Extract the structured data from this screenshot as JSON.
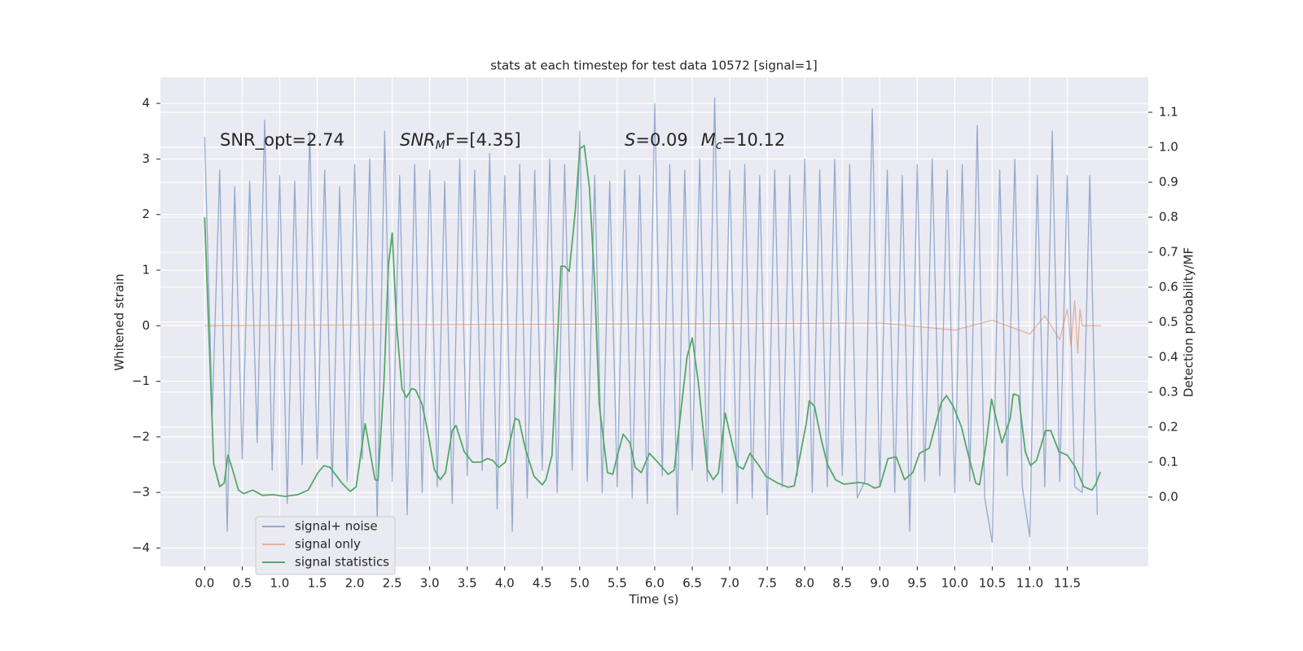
{
  "chart_data": {
    "type": "line",
    "title": "stats at each timestep for test data 10572 [signal=1]",
    "xlabel": "Time (s)",
    "ylabel": "Whitened strain",
    "y2label": "Detection probability/MF",
    "annotations": [
      [
        "SNR_opt=2.74"
      ],
      [
        "SNR",
        "M",
        "F=[4.35]"
      ],
      [
        "S",
        "=0.09",
        "M",
        "c",
        "=10.12"
      ]
    ],
    "xlim": [
      -0.59,
      12.58
    ],
    "ylim": [
      -4.33,
      4.47
    ],
    "y2lim": [
      -0.198,
      1.2
    ],
    "xticks": [
      {
        "value": 0,
        "label": "0.0"
      },
      0.5,
      {
        "value": 1,
        "label": "1.0"
      },
      1.5,
      {
        "value": 2,
        "label": "2.0"
      },
      2.5,
      {
        "value": 3,
        "label": "3.0"
      },
      3.5,
      {
        "value": 4,
        "label": "4.0"
      },
      4.5,
      {
        "value": 5,
        "label": "5.0"
      },
      5.5,
      {
        "value": 6,
        "label": "6.0"
      },
      6.5,
      {
        "value": 7,
        "label": "7.0"
      },
      7.5,
      {
        "value": 8,
        "label": "8.0"
      },
      8.5,
      {
        "value": 9,
        "label": "9.0"
      },
      9.5,
      {
        "value": 10,
        "label": "10.0"
      },
      10.5,
      {
        "value": 11,
        "label": "11.0"
      },
      11.5
    ],
    "yticks": [
      {
        "value": -4,
        "label": "−4"
      },
      {
        "value": -3,
        "label": "−3"
      },
      {
        "value": -2,
        "label": "−2"
      },
      {
        "value": -1,
        "label": "−1"
      },
      0,
      1,
      2,
      3,
      4
    ],
    "y2ticks": [
      {
        "value": 0,
        "label": "0.0"
      },
      0.1,
      0.2,
      0.3,
      0.4,
      0.5,
      0.6,
      0.7,
      0.8,
      0.9,
      {
        "value": 1,
        "label": "1.0"
      },
      1.1
    ],
    "grid": true,
    "legend": "lower left",
    "series": [
      {
        "name": "signal+ noise",
        "color": "#4c72b0",
        "axis": "y",
        "x": [
          0,
          0.1,
          0.2,
          0.3,
          0.4,
          0.5,
          0.6,
          0.7,
          0.8,
          0.9,
          1,
          1.1,
          1.2,
          1.3,
          1.4,
          1.5,
          1.6,
          1.7,
          1.8,
          1.9,
          2,
          2.1,
          2.2,
          2.3,
          2.4,
          2.5,
          2.6,
          2.7,
          2.8,
          2.9,
          3,
          3.1,
          3.2,
          3.3,
          3.4,
          3.5,
          3.6,
          3.7,
          3.8,
          3.9,
          4,
          4.1,
          4.2,
          4.3,
          4.4,
          4.5,
          4.6,
          4.7,
          4.8,
          4.9,
          5,
          5.1,
          5.2,
          5.3,
          5.4,
          5.5,
          5.6,
          5.7,
          5.8,
          5.9,
          6,
          6.1,
          6.2,
          6.3,
          6.4,
          6.5,
          6.6,
          6.7,
          6.8,
          6.9,
          7,
          7.1,
          7.2,
          7.3,
          7.4,
          7.5,
          7.6,
          7.7,
          7.8,
          7.9,
          8,
          8.1,
          8.2,
          8.3,
          8.4,
          8.5,
          8.6,
          8.7,
          8.8,
          8.9,
          9,
          9.1,
          9.2,
          9.3,
          9.4,
          9.5,
          9.6,
          9.7,
          9.8,
          9.9,
          10,
          10.1,
          10.2,
          10.3,
          10.4,
          10.5,
          10.6,
          10.7,
          10.8,
          10.9,
          11,
          11.1,
          11.2,
          11.3,
          11.4,
          11.5,
          11.6,
          11.7,
          11.8,
          11.9
        ],
        "values": [
          3.4,
          -1.6,
          2.8,
          -3.7,
          2.5,
          -2.4,
          2.6,
          -2.1,
          3.7,
          -2.6,
          2.7,
          -3.2,
          2.6,
          -2.5,
          3.5,
          -2.4,
          2.8,
          -2.9,
          2.5,
          -2.8,
          2.9,
          -2.4,
          3.0,
          -3.5,
          3.5,
          -2.8,
          2.7,
          -3.4,
          2.9,
          -3.0,
          2.8,
          -2.9,
          2.6,
          -3.2,
          3.0,
          -2.7,
          2.8,
          -2.6,
          3.1,
          -3.3,
          2.7,
          -3.7,
          2.9,
          -3.1,
          2.8,
          -2.6,
          3.0,
          -3.0,
          2.9,
          -2.6,
          3.5,
          -2.8,
          2.7,
          -3.0,
          2.6,
          -2.9,
          2.8,
          -3.1,
          2.7,
          -3.2,
          4.0,
          -2.7,
          2.9,
          -3.4,
          2.8,
          -2.6,
          3.0,
          -2.8,
          4.1,
          -3.0,
          2.8,
          -3.2,
          2.9,
          -3.1,
          2.7,
          -3.4,
          2.8,
          -2.9,
          2.7,
          -2.7,
          3.0,
          -3.0,
          2.8,
          -2.9,
          3.0,
          -2.7,
          2.9,
          -3.1,
          -2.8,
          3.9,
          -2.9,
          2.8,
          -3.0,
          2.7,
          -3.7,
          2.9,
          -2.8,
          3.0,
          -2.7,
          2.8,
          -3.0,
          2.9,
          -2.8,
          3.6,
          -3.1,
          -3.9,
          2.8,
          -2.7,
          3.0,
          -2.9,
          -3.8,
          2.7,
          -2.9,
          3.5,
          -2.8,
          2.7,
          -2.9,
          -3.0,
          2.7,
          -3.4
        ]
      },
      {
        "name": "signal only",
        "color": "#dd8452",
        "axis": "y",
        "x": [
          0,
          9.0,
          10.0,
          10.5,
          11.0,
          11.2,
          11.4,
          11.5,
          11.55,
          11.6,
          11.64,
          11.67,
          11.7,
          11.75,
          11.95
        ],
        "values": [
          0,
          0.05,
          -0.08,
          0.1,
          -0.15,
          0.18,
          -0.25,
          0.3,
          -0.35,
          0.45,
          -0.5,
          0.3,
          0,
          0,
          0
        ]
      },
      {
        "name": "signal statistics",
        "color": "#55a868",
        "axis": "y2",
        "x": [
          0,
          0.12,
          0.2,
          0.26,
          0.31,
          0.37,
          0.45,
          0.52,
          0.64,
          0.77,
          0.91,
          1.07,
          1.24,
          1.38,
          1.51,
          1.59,
          1.67,
          1.83,
          1.94,
          2.02,
          2.14,
          2.27,
          2.31,
          2.39,
          2.45,
          2.5,
          2.56,
          2.63,
          2.69,
          2.76,
          2.81,
          2.9,
          2.98,
          3.06,
          3.14,
          3.21,
          3.3,
          3.35,
          3.46,
          3.57,
          3.68,
          3.77,
          3.84,
          3.92,
          4.01,
          4.14,
          4.19,
          4.28,
          4.39,
          4.5,
          4.55,
          4.63,
          4.75,
          4.8,
          4.86,
          4.94,
          5.0,
          5.06,
          5.13,
          5.2,
          5.26,
          5.37,
          5.44,
          5.51,
          5.58,
          5.67,
          5.74,
          5.82,
          5.93,
          6.04,
          6.18,
          6.26,
          6.43,
          6.5,
          6.58,
          6.7,
          6.78,
          6.85,
          6.94,
          7.03,
          7.1,
          7.18,
          7.27,
          7.39,
          7.48,
          7.64,
          7.78,
          7.86,
          8.02,
          8.06,
          8.13,
          8.22,
          8.3,
          8.41,
          8.52,
          8.73,
          8.84,
          8.93,
          9.0,
          9.11,
          9.22,
          9.33,
          9.44,
          9.53,
          9.66,
          9.82,
          9.89,
          9.98,
          10.09,
          10.17,
          10.28,
          10.33,
          10.42,
          10.49,
          10.63,
          10.74,
          10.78,
          10.85,
          10.94,
          11.01,
          11.09,
          11.21,
          11.28,
          11.39,
          11.5,
          11.61,
          11.72,
          11.83,
          11.88,
          11.94
        ],
        "values": [
          0.8,
          0.095,
          0.03,
          0.04,
          0.12,
          0.08,
          0.02,
          0.01,
          0.02,
          0.005,
          0.007,
          0.002,
          0.007,
          0.02,
          0.07,
          0.09,
          0.085,
          0.04,
          0.016,
          0.03,
          0.21,
          0.05,
          0.047,
          0.33,
          0.665,
          0.755,
          0.49,
          0.31,
          0.285,
          0.31,
          0.307,
          0.265,
          0.18,
          0.08,
          0.05,
          0.07,
          0.19,
          0.205,
          0.13,
          0.1,
          0.1,
          0.11,
          0.105,
          0.085,
          0.1,
          0.225,
          0.22,
          0.135,
          0.06,
          0.035,
          0.05,
          0.12,
          0.66,
          0.66,
          0.645,
          0.815,
          0.995,
          1.005,
          0.885,
          0.605,
          0.265,
          0.07,
          0.065,
          0.125,
          0.18,
          0.155,
          0.085,
          0.07,
          0.125,
          0.1,
          0.065,
          0.077,
          0.4,
          0.455,
          0.33,
          0.08,
          0.05,
          0.07,
          0.24,
          0.155,
          0.09,
          0.08,
          0.125,
          0.09,
          0.06,
          0.04,
          0.028,
          0.032,
          0.21,
          0.275,
          0.26,
          0.165,
          0.095,
          0.05,
          0.037,
          0.042,
          0.037,
          0.026,
          0.03,
          0.11,
          0.115,
          0.05,
          0.07,
          0.125,
          0.14,
          0.27,
          0.29,
          0.26,
          0.2,
          0.13,
          0.04,
          0.035,
          0.155,
          0.28,
          0.155,
          0.225,
          0.295,
          0.29,
          0.13,
          0.09,
          0.105,
          0.19,
          0.19,
          0.13,
          0.12,
          0.085,
          0.03,
          0.02,
          0.037,
          0.072
        ]
      }
    ]
  }
}
